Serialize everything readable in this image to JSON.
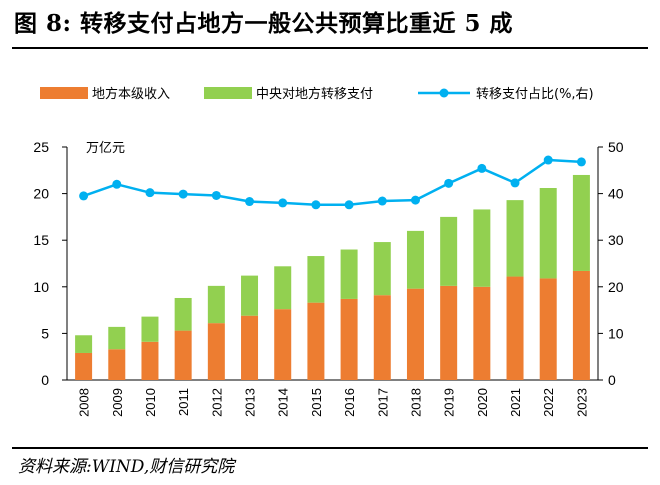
{
  "header": {
    "title": "图 8:  转移支付占地方一般公共预算比重近 5 成"
  },
  "footer": {
    "source": "资料来源:WIND,财信研究院"
  },
  "colors": {
    "local_revenue": "#ED7D31",
    "central_transfer": "#92D050",
    "ratio_line": "#00B0F0"
  },
  "chart_data": {
    "type": "bar",
    "stacked": true,
    "categories": [
      "2008",
      "2009",
      "2010",
      "2011",
      "2012",
      "2013",
      "2014",
      "2015",
      "2016",
      "2017",
      "2018",
      "2019",
      "2020",
      "2021",
      "2022",
      "2023"
    ],
    "series": [
      {
        "name": "地方本级收入",
        "axis": "left",
        "type": "bar",
        "values": [
          2.9,
          3.3,
          4.1,
          5.3,
          6.1,
          6.9,
          7.6,
          8.3,
          8.7,
          9.1,
          9.8,
          10.1,
          10.0,
          11.1,
          10.9,
          11.7
        ]
      },
      {
        "name": "中央对地方转移支付",
        "axis": "left",
        "type": "bar",
        "values": [
          1.9,
          2.4,
          2.7,
          3.5,
          4.0,
          4.3,
          4.6,
          5.0,
          5.3,
          5.7,
          6.2,
          7.4,
          8.3,
          8.2,
          9.7,
          10.3
        ]
      },
      {
        "name": "转移支付占比(%,右)",
        "axis": "right",
        "type": "line",
        "values": [
          39.5,
          42.0,
          40.2,
          39.9,
          39.6,
          38.3,
          38.0,
          37.6,
          37.6,
          38.4,
          38.6,
          42.2,
          45.4,
          42.3,
          47.2,
          46.8
        ]
      }
    ],
    "legend": {
      "items": [
        "地方本级收入",
        "中央对地方转移支付",
        "转移支付占比(%,右)"
      ],
      "placement": "top"
    },
    "y_left": {
      "label": "万亿元",
      "ylim": [
        0,
        25
      ],
      "ticks": [
        "0",
        "5",
        "10",
        "15",
        "20",
        "25"
      ]
    },
    "y_right": {
      "label": "",
      "ylim": [
        0,
        50
      ],
      "ticks": [
        "0",
        "10",
        "20",
        "30",
        "40",
        "50"
      ]
    },
    "grid": false
  }
}
